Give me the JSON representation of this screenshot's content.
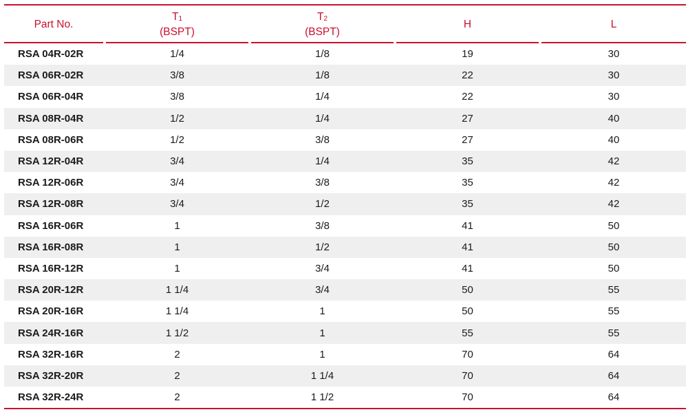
{
  "columns": [
    {
      "label": "Part No.",
      "sub": "",
      "line2": ""
    },
    {
      "label": "T",
      "sub": "1",
      "line2": "(BSPT)"
    },
    {
      "label": "T",
      "sub": "2",
      "line2": "(BSPT)"
    },
    {
      "label": "H",
      "sub": "",
      "line2": ""
    },
    {
      "label": "L",
      "sub": "",
      "line2": ""
    }
  ],
  "rows": [
    [
      "RSA 04R-02R",
      "1/4",
      "1/8",
      "19",
      "30"
    ],
    [
      "RSA 06R-02R",
      "3/8",
      "1/8",
      "22",
      "30"
    ],
    [
      "RSA 06R-04R",
      "3/8",
      "1/4",
      "22",
      "30"
    ],
    [
      "RSA 08R-04R",
      "1/2",
      "1/4",
      "27",
      "40"
    ],
    [
      "RSA 08R-06R",
      "1/2",
      "3/8",
      "27",
      "40"
    ],
    [
      "RSA 12R-04R",
      "3/4",
      "1/4",
      "35",
      "42"
    ],
    [
      "RSA 12R-06R",
      "3/4",
      "3/8",
      "35",
      "42"
    ],
    [
      "RSA 12R-08R",
      "3/4",
      "1/2",
      "35",
      "42"
    ],
    [
      "RSA 16R-06R",
      "1",
      "3/8",
      "41",
      "50"
    ],
    [
      "RSA 16R-08R",
      "1",
      "1/2",
      "41",
      "50"
    ],
    [
      "RSA 16R-12R",
      "1",
      "3/4",
      "41",
      "50"
    ],
    [
      "RSA 20R-12R",
      "1 1/4",
      "3/4",
      "50",
      "55"
    ],
    [
      "RSA 20R-16R",
      "1 1/4",
      "1",
      "50",
      "55"
    ],
    [
      "RSA 24R-16R",
      "1 1/2",
      "1",
      "55",
      "55"
    ],
    [
      "RSA 32R-16R",
      "2",
      "1",
      "70",
      "64"
    ],
    [
      "RSA 32R-20R",
      "2",
      "1 1/4",
      "70",
      "64"
    ],
    [
      "RSA 32R-24R",
      "2",
      "1 1/2",
      "70",
      "64"
    ]
  ],
  "colors": {
    "accent": "#c8102e",
    "stripe": "#efefef",
    "text": "#1a1a1a"
  }
}
